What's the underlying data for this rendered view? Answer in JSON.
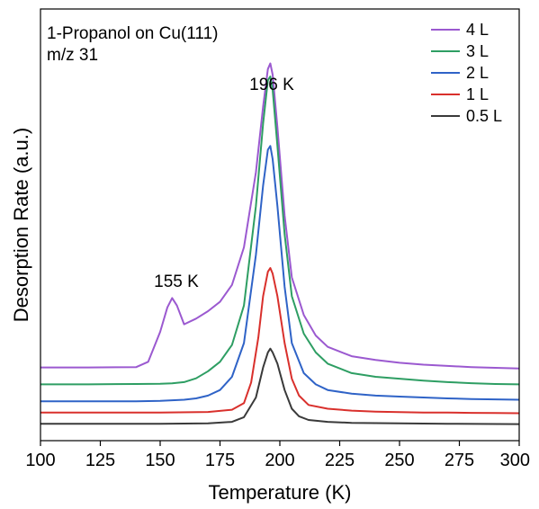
{
  "chart_data": {
    "type": "line",
    "title": "1-Propanol on Cu(111)",
    "subtitle": "m/z 31",
    "xlabel": "Temperature (K)",
    "ylabel": "Desorption Rate (a.u.)",
    "xlim": [
      100,
      300
    ],
    "x_ticks": [
      "100",
      "125",
      "150",
      "175",
      "200",
      "225",
      "250",
      "275",
      "300"
    ],
    "y_ticks_shown": false,
    "grid": false,
    "legend_position": "top-right",
    "annotations": [
      {
        "text": "196 K",
        "x": 196
      },
      {
        "text": "155 K",
        "x": 155
      }
    ],
    "series": [
      {
        "name": "4 L",
        "color": "#9b59d0",
        "x": [
          100,
          120,
          140,
          145,
          150,
          153,
          155,
          157,
          160,
          165,
          170,
          175,
          180,
          185,
          190,
          193,
          195,
          196,
          197,
          199,
          202,
          205,
          210,
          215,
          220,
          230,
          240,
          250,
          260,
          270,
          280,
          290,
          300
        ],
        "y": [
          0.34,
          0.34,
          0.342,
          0.37,
          0.53,
          0.66,
          0.71,
          0.67,
          0.57,
          0.6,
          0.64,
          0.69,
          0.78,
          0.98,
          1.38,
          1.73,
          1.93,
          1.96,
          1.9,
          1.62,
          1.15,
          0.82,
          0.62,
          0.51,
          0.45,
          0.4,
          0.38,
          0.365,
          0.355,
          0.348,
          0.342,
          0.338,
          0.335
        ]
      },
      {
        "name": "3 L",
        "color": "#2e9e63",
        "x": [
          100,
          120,
          140,
          150,
          155,
          160,
          165,
          170,
          175,
          180,
          185,
          190,
          193,
          195,
          196,
          197,
          199,
          202,
          205,
          210,
          215,
          220,
          230,
          240,
          250,
          260,
          270,
          280,
          290,
          300
        ],
        "y": [
          0.25,
          0.25,
          0.252,
          0.253,
          0.255,
          0.262,
          0.282,
          0.32,
          0.37,
          0.46,
          0.67,
          1.2,
          1.64,
          1.87,
          1.89,
          1.82,
          1.52,
          1.05,
          0.72,
          0.52,
          0.42,
          0.36,
          0.31,
          0.29,
          0.28,
          0.27,
          0.262,
          0.256,
          0.252,
          0.25
        ]
      },
      {
        "name": "2 L",
        "color": "#2f63c7",
        "x": [
          100,
          120,
          140,
          150,
          160,
          165,
          170,
          175,
          180,
          185,
          190,
          193,
          195,
          196,
          197,
          199,
          202,
          205,
          210,
          215,
          220,
          230,
          240,
          250,
          260,
          270,
          280,
          290,
          300
        ],
        "y": [
          0.16,
          0.16,
          0.16,
          0.162,
          0.168,
          0.175,
          0.19,
          0.22,
          0.29,
          0.47,
          0.94,
          1.31,
          1.5,
          1.52,
          1.45,
          1.2,
          0.77,
          0.47,
          0.31,
          0.25,
          0.22,
          0.2,
          0.19,
          0.185,
          0.18,
          0.175,
          0.172,
          0.17,
          0.168
        ]
      },
      {
        "name": "1 L",
        "color": "#d9302c",
        "x": [
          100,
          120,
          150,
          170,
          180,
          185,
          188,
          191,
          193,
          195,
          196,
          197,
          199,
          202,
          205,
          208,
          212,
          220,
          230,
          240,
          250,
          260,
          270,
          280,
          290,
          300
        ],
        "y": [
          0.1,
          0.1,
          0.1,
          0.103,
          0.115,
          0.15,
          0.26,
          0.5,
          0.72,
          0.85,
          0.87,
          0.84,
          0.72,
          0.47,
          0.28,
          0.19,
          0.14,
          0.12,
          0.11,
          0.105,
          0.102,
          0.1,
          0.1,
          0.098,
          0.097,
          0.096
        ]
      },
      {
        "name": "0.5 L",
        "color": "#3a3a3a",
        "x": [
          100,
          120,
          150,
          170,
          180,
          185,
          190,
          193,
          195,
          196,
          197,
          199,
          202,
          205,
          208,
          212,
          220,
          230,
          250,
          270,
          300
        ],
        "y": [
          0.04,
          0.04,
          0.04,
          0.042,
          0.05,
          0.075,
          0.18,
          0.34,
          0.42,
          0.44,
          0.42,
          0.36,
          0.22,
          0.12,
          0.08,
          0.06,
          0.05,
          0.045,
          0.042,
          0.04,
          0.038
        ]
      }
    ]
  }
}
